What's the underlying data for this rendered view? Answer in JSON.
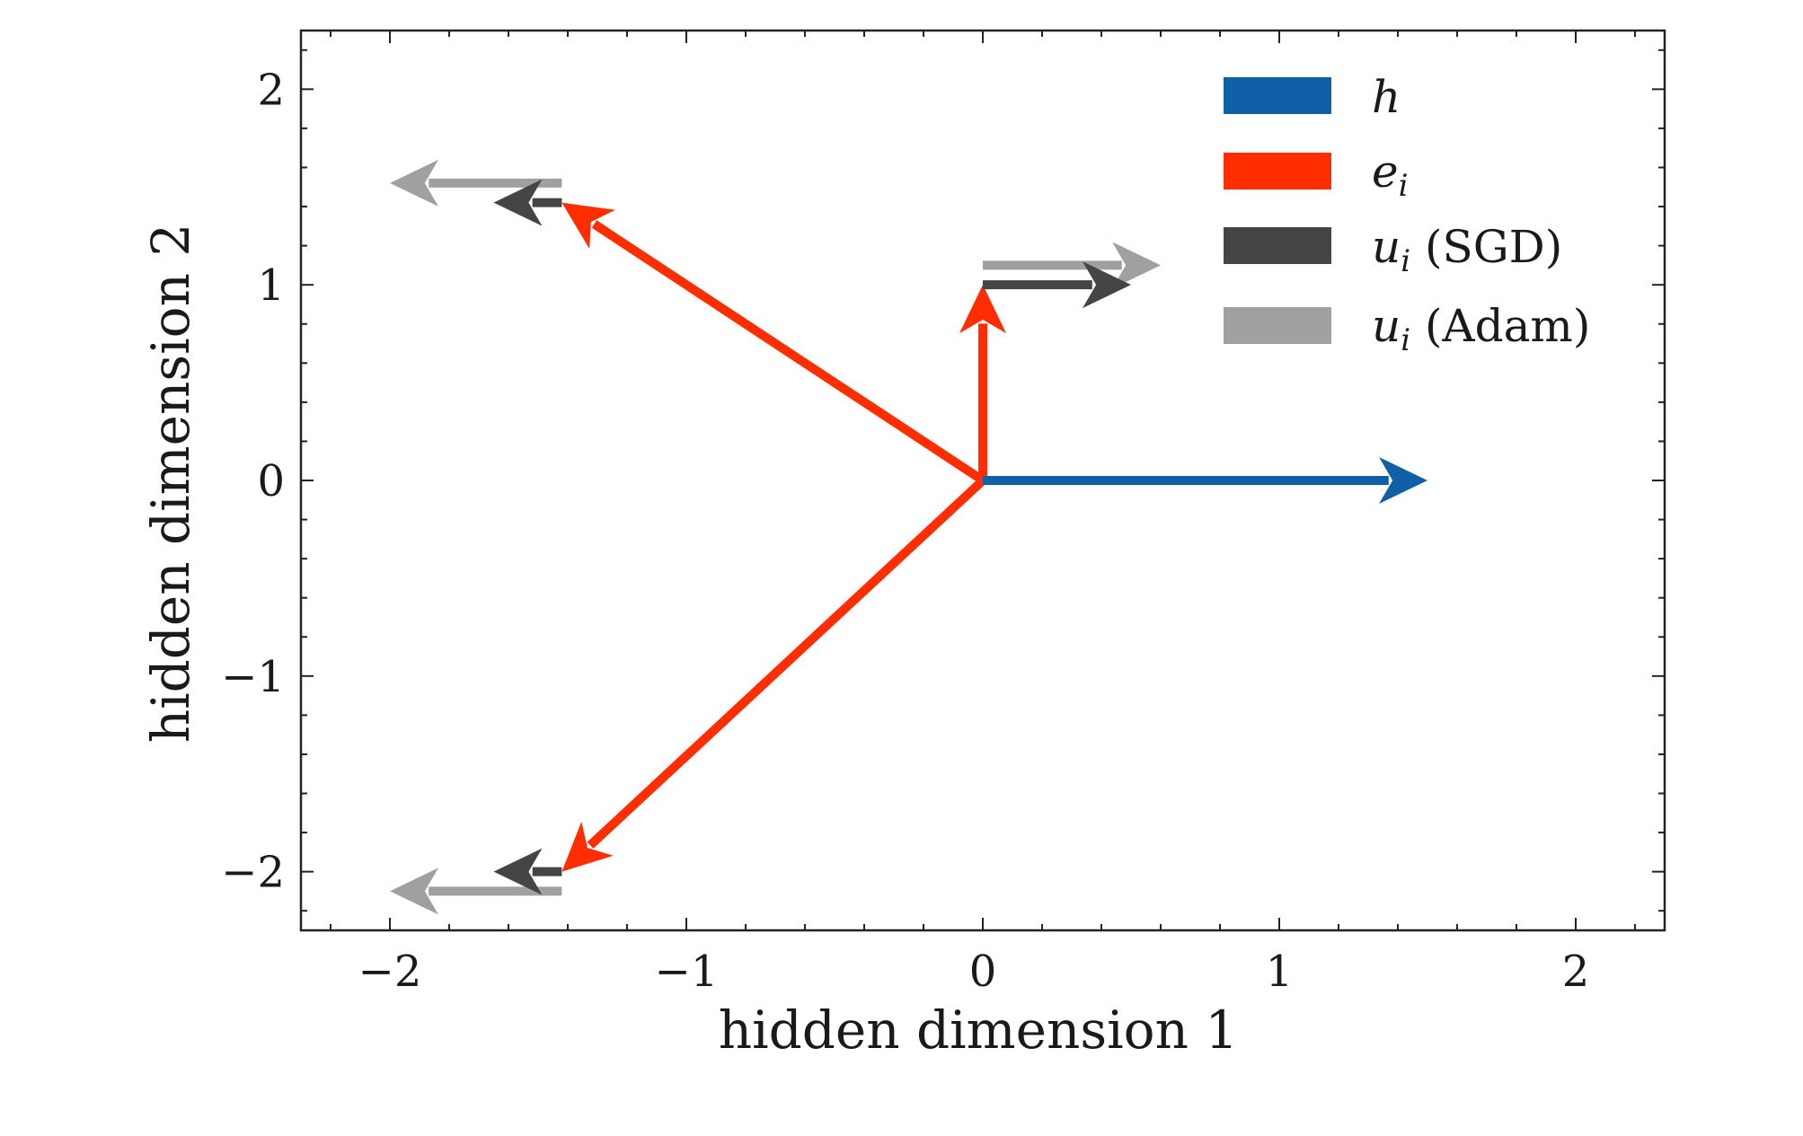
{
  "chart_data": {
    "type": "vector",
    "xlabel": "hidden dimension 1",
    "ylabel": "hidden dimension 2",
    "xlim": [
      -2.3,
      2.3
    ],
    "ylim": [
      -2.3,
      2.3
    ],
    "xticks": [
      -2,
      -1,
      0,
      1,
      2
    ],
    "yticks": [
      -2,
      -1,
      0,
      1,
      2
    ],
    "tick_labels": {
      "m2": "−2",
      "m1": "−1",
      "z": "0",
      "p1": "1",
      "p2": "2"
    },
    "grid": false,
    "legend_position": "top-right",
    "series": [
      {
        "key": "h",
        "color": "#1060a8",
        "vectors": [
          {
            "from": [
              0,
              0
            ],
            "to": [
              1.5,
              0
            ]
          }
        ]
      },
      {
        "key": "e",
        "color": "#ff2d00",
        "vectors": [
          {
            "from": [
              0,
              0
            ],
            "to": [
              0,
              1.0
            ]
          },
          {
            "from": [
              0,
              0
            ],
            "to": [
              -1.42,
              1.42
            ]
          },
          {
            "from": [
              0,
              0
            ],
            "to": [
              -1.42,
              -2.0
            ]
          }
        ]
      },
      {
        "key": "sgd",
        "color": "#454545",
        "vectors": [
          {
            "from": [
              0,
              1.0
            ],
            "to": [
              0.5,
              1.0
            ]
          },
          {
            "from": [
              -1.42,
              1.42
            ],
            "to": [
              -1.65,
              1.42
            ]
          },
          {
            "from": [
              -1.42,
              -2.0
            ],
            "to": [
              -1.65,
              -2.0
            ]
          }
        ]
      },
      {
        "key": "adam",
        "color": "#a0a0a0",
        "vectors": [
          {
            "from": [
              0,
              1.1
            ],
            "to": [
              0.6,
              1.1
            ]
          },
          {
            "from": [
              -1.42,
              1.52
            ],
            "to": [
              -2.0,
              1.52
            ]
          },
          {
            "from": [
              -1.42,
              -2.1
            ],
            "to": [
              -2.0,
              -2.1
            ]
          }
        ]
      }
    ],
    "legend": [
      {
        "key": "h",
        "symbol": "h",
        "suffix": "",
        "color": "#1060a8"
      },
      {
        "key": "e",
        "symbol": "e",
        "sub": "i",
        "suffix": "",
        "color": "#ff2d00"
      },
      {
        "key": "sgd",
        "symbol": "u",
        "sub": "i",
        "suffix": " (SGD)",
        "color": "#454545"
      },
      {
        "key": "adam",
        "symbol": "u",
        "sub": "i",
        "suffix": " (Adam)",
        "color": "#a0a0a0"
      }
    ]
  }
}
